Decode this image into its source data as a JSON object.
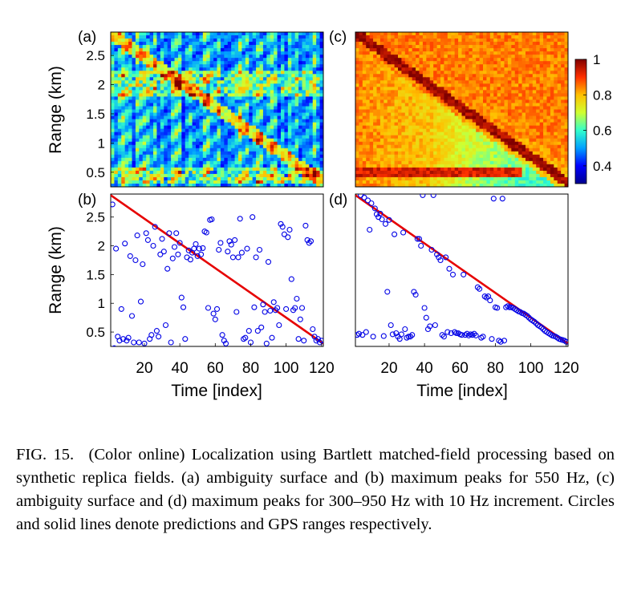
{
  "figure": {
    "panel_labels": [
      "(a)",
      "(b)",
      "(c)",
      "(d)"
    ],
    "ylabel": "Range (km)",
    "xlabel": "Time [index]",
    "colorbar": {
      "ticks": [
        "1",
        "0.8",
        "0.6",
        "0.4"
      ],
      "colormap": [
        "#00008f",
        "#0000ff",
        "#00a0ff",
        "#33ffcc",
        "#d0ff30",
        "#ffc000",
        "#ff3000",
        "#800000"
      ]
    },
    "colors": {
      "prediction": "#0000e6",
      "gps_line": "#e60000"
    }
  },
  "caption": {
    "label": "FIG. 15.",
    "text": "(Color online) Localization using Bartlett matched-field processing based on synthetic replica fields. (a) ambiguity surface and (b) maximum peaks for 550 Hz, (c) ambiguity surface and (d) maximum peaks for 300–950 Hz with 10 Hz increment. Circles and solid lines denote predictions and GPS ranges respectively."
  },
  "chart_data": [
    {
      "panel": "(a)",
      "type": "heatmap",
      "x_range": [
        1,
        120
      ],
      "y_range": [
        0.25,
        2.9
      ],
      "yticks": [
        0.5,
        1,
        1.5,
        2,
        2.5
      ],
      "ylabel": "Range (km)",
      "colorbar_range": [
        0.3,
        1
      ]
    },
    {
      "panel": "(c)",
      "type": "heatmap",
      "x_range": [
        1,
        120
      ],
      "y_range": [
        0.25,
        2.9
      ],
      "colorbar_range": [
        0.3,
        1
      ],
      "colorbar_ticks": [
        0.4,
        0.6,
        0.8,
        1
      ]
    },
    {
      "panel": "(b)",
      "type": "scatter",
      "xlim": [
        1,
        121
      ],
      "ylim": [
        0.25,
        2.9
      ],
      "xticks": [
        20,
        40,
        60,
        80,
        100,
        120
      ],
      "yticks": [
        0.5,
        1,
        1.5,
        2,
        2.5
      ],
      "xlabel": "Time [index]",
      "ylabel": "Range (km)",
      "gps_line": {
        "x": [
          1,
          121
        ],
        "y": [
          2.88,
          0.3
        ]
      },
      "predictions": {
        "x": [
          2,
          3,
          4,
          5,
          6,
          7,
          8,
          9,
          10,
          11,
          12,
          13,
          14,
          15,
          16,
          17,
          18,
          19,
          20,
          21,
          22,
          23,
          24,
          25,
          26,
          27,
          28,
          29,
          30,
          31,
          32,
          33,
          34,
          35,
          36,
          37,
          38,
          39,
          40,
          41,
          42,
          43,
          44,
          45,
          46,
          47,
          48,
          49,
          50,
          51,
          52,
          53,
          54,
          55,
          56,
          57,
          58,
          59,
          60,
          61,
          62,
          63,
          64,
          65,
          66,
          67,
          68,
          69,
          70,
          71,
          72,
          73,
          74,
          75,
          76,
          77,
          78,
          79,
          80,
          81,
          82,
          83,
          84,
          85,
          86,
          87,
          88,
          89,
          90,
          91,
          92,
          93,
          94,
          95,
          96,
          97,
          98,
          99,
          100,
          101,
          102,
          103,
          104,
          105,
          106,
          107,
          108,
          109,
          110,
          111,
          112,
          113,
          114,
          115,
          116,
          117,
          118,
          119,
          120
        ],
        "y": [
          2.72,
          0.22,
          1.95,
          0.42,
          0.35,
          0.9,
          0.38,
          2.04,
          0.35,
          0.4,
          1.82,
          0.78,
          0.32,
          1.75,
          2.18,
          0.32,
          1.03,
          1.68,
          0.3,
          2.22,
          2.1,
          0.38,
          0.45,
          2.0,
          2.33,
          0.52,
          0.42,
          1.85,
          2.12,
          1.9,
          0.62,
          1.6,
          2.22,
          0.32,
          1.78,
          1.98,
          2.22,
          1.85,
          2.05,
          1.1,
          0.93,
          0.38,
          1.8,
          1.92,
          1.76,
          1.88,
          1.95,
          2.03,
          1.82,
          1.95,
          1.85,
          1.96,
          2.25,
          2.23,
          0.92,
          2.45,
          2.46,
          0.82,
          0.72,
          0.9,
          1.93,
          2.05,
          0.45,
          0.35,
          0.3,
          1.9,
          2.08,
          2.02,
          1.8,
          2.1,
          0.85,
          1.8,
          2.47,
          1.88,
          0.38,
          0.4,
          1.95,
          0.52,
          0.32,
          2.5,
          0.93,
          1.8,
          0.52,
          1.93,
          0.58,
          0.98,
          0.85,
          0.3,
          1.72,
          0.87,
          0.4,
          1.02,
          0.88,
          0.92,
          0.62,
          2.38,
          2.33,
          2.2,
          0.9,
          2.15,
          2.28,
          1.42,
          0.88,
          0.92,
          1.08,
          0.38,
          0.72,
          0.92,
          0.35,
          2.35,
          2.1,
          2.05,
          2.08,
          0.55,
          0.42,
          0.35,
          0.38,
          0.32,
          0.35
        ]
      }
    },
    {
      "panel": "(d)",
      "type": "scatter",
      "xlim": [
        1,
        121
      ],
      "ylim": [
        0.25,
        2.9
      ],
      "xticks": [
        20,
        40,
        60,
        80,
        100,
        120
      ],
      "xlabel": "Time [index]",
      "gps_line": {
        "x": [
          1,
          121
        ],
        "y": [
          2.88,
          0.3
        ]
      },
      "predictions": {
        "x": [
          2,
          3,
          4,
          5,
          6,
          7,
          8,
          9,
          10,
          11,
          12,
          13,
          14,
          15,
          16,
          17,
          18,
          19,
          20,
          21,
          22,
          23,
          24,
          25,
          26,
          27,
          28,
          29,
          30,
          31,
          32,
          33,
          34,
          35,
          36,
          37,
          38,
          39,
          40,
          41,
          42,
          43,
          44,
          45,
          46,
          47,
          48,
          49,
          50,
          51,
          52,
          53,
          54,
          55,
          56,
          57,
          58,
          59,
          60,
          61,
          62,
          63,
          64,
          65,
          66,
          67,
          68,
          69,
          70,
          71,
          72,
          73,
          74,
          75,
          76,
          77,
          78,
          79,
          80,
          81,
          82,
          83,
          84,
          85,
          86,
          87,
          88,
          89,
          90,
          91,
          92,
          93,
          94,
          95,
          96,
          97,
          98,
          99,
          100,
          101,
          102,
          103,
          104,
          105,
          106,
          107,
          108,
          109,
          110,
          111,
          112,
          113,
          114,
          115,
          116,
          117,
          118,
          119,
          120
        ],
        "y": [
          0.45,
          0.47,
          2.88,
          0.45,
          2.84,
          0.5,
          2.79,
          2.28,
          2.74,
          0.42,
          2.65,
          2.55,
          2.5,
          2.56,
          2.46,
          0.43,
          2.38,
          1.2,
          2.45,
          0.62,
          0.46,
          2.2,
          0.48,
          0.42,
          0.38,
          0.46,
          2.23,
          0.55,
          0.4,
          0.42,
          0.42,
          0.45,
          1.2,
          1.15,
          2.12,
          2.12,
          2.0,
          2.88,
          0.92,
          0.75,
          0.55,
          0.6,
          1.93,
          2.88,
          0.62,
          1.85,
          1.8,
          1.75,
          0.45,
          0.42,
          1.8,
          0.5,
          1.6,
          0.48,
          1.5,
          0.5,
          0.48,
          0.48,
          0.46,
          0.45,
          1.5,
          0.45,
          0.47,
          0.44,
          0.46,
          0.45,
          0.47,
          0.44,
          1.28,
          1.25,
          0.4,
          0.42,
          1.12,
          1.1,
          1.12,
          1.05,
          0.38,
          2.82,
          0.93,
          0.92,
          0.35,
          0.33,
          2.82,
          0.35,
          0.93,
          0.95,
          0.93,
          0.93,
          0.92,
          0.9,
          0.88,
          0.86,
          0.85,
          0.83,
          0.82,
          0.8,
          0.78,
          0.75,
          0.72,
          0.7,
          0.68,
          0.65,
          0.62,
          0.6,
          0.58,
          0.55,
          0.52,
          0.5,
          0.48,
          0.46,
          0.44,
          0.43,
          0.42,
          0.4,
          0.38,
          0.37,
          0.36,
          0.35,
          0.33
        ]
      }
    }
  ]
}
